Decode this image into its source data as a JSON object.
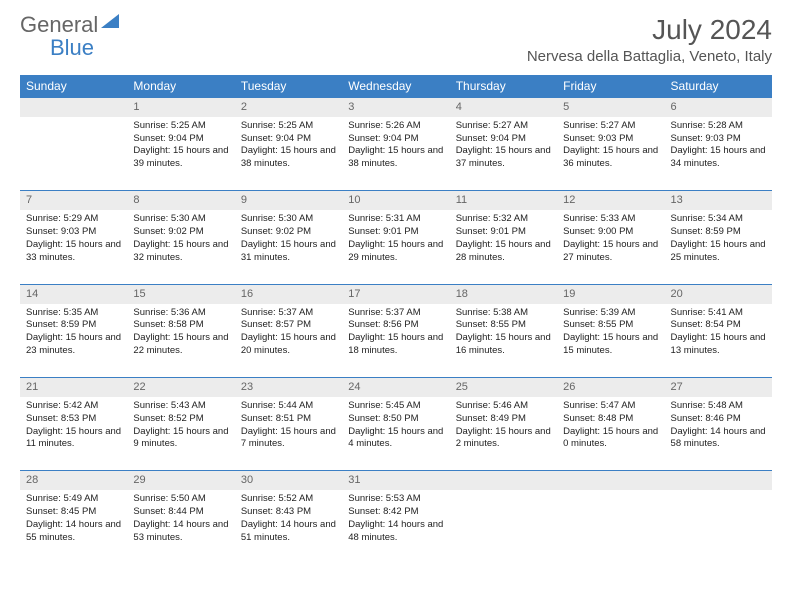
{
  "logo": {
    "text1": "General",
    "text2": "Blue"
  },
  "title": "July 2024",
  "location": "Nervesa della Battaglia, Veneto, Italy",
  "colors": {
    "header_bg": "#3b7fc4",
    "header_text": "#ffffff",
    "daynum_bg": "#ececec",
    "border": "#3b7fc4",
    "text": "#333333",
    "title_text": "#555555"
  },
  "weekdays": [
    "Sunday",
    "Monday",
    "Tuesday",
    "Wednesday",
    "Thursday",
    "Friday",
    "Saturday"
  ],
  "weeks": [
    {
      "nums": [
        "",
        "1",
        "2",
        "3",
        "4",
        "5",
        "6"
      ],
      "cells": [
        "",
        "Sunrise: 5:25 AM\nSunset: 9:04 PM\nDaylight: 15 hours and 39 minutes.",
        "Sunrise: 5:25 AM\nSunset: 9:04 PM\nDaylight: 15 hours and 38 minutes.",
        "Sunrise: 5:26 AM\nSunset: 9:04 PM\nDaylight: 15 hours and 38 minutes.",
        "Sunrise: 5:27 AM\nSunset: 9:04 PM\nDaylight: 15 hours and 37 minutes.",
        "Sunrise: 5:27 AM\nSunset: 9:03 PM\nDaylight: 15 hours and 36 minutes.",
        "Sunrise: 5:28 AM\nSunset: 9:03 PM\nDaylight: 15 hours and 34 minutes."
      ]
    },
    {
      "nums": [
        "7",
        "8",
        "9",
        "10",
        "11",
        "12",
        "13"
      ],
      "cells": [
        "Sunrise: 5:29 AM\nSunset: 9:03 PM\nDaylight: 15 hours and 33 minutes.",
        "Sunrise: 5:30 AM\nSunset: 9:02 PM\nDaylight: 15 hours and 32 minutes.",
        "Sunrise: 5:30 AM\nSunset: 9:02 PM\nDaylight: 15 hours and 31 minutes.",
        "Sunrise: 5:31 AM\nSunset: 9:01 PM\nDaylight: 15 hours and 29 minutes.",
        "Sunrise: 5:32 AM\nSunset: 9:01 PM\nDaylight: 15 hours and 28 minutes.",
        "Sunrise: 5:33 AM\nSunset: 9:00 PM\nDaylight: 15 hours and 27 minutes.",
        "Sunrise: 5:34 AM\nSunset: 8:59 PM\nDaylight: 15 hours and 25 minutes."
      ]
    },
    {
      "nums": [
        "14",
        "15",
        "16",
        "17",
        "18",
        "19",
        "20"
      ],
      "cells": [
        "Sunrise: 5:35 AM\nSunset: 8:59 PM\nDaylight: 15 hours and 23 minutes.",
        "Sunrise: 5:36 AM\nSunset: 8:58 PM\nDaylight: 15 hours and 22 minutes.",
        "Sunrise: 5:37 AM\nSunset: 8:57 PM\nDaylight: 15 hours and 20 minutes.",
        "Sunrise: 5:37 AM\nSunset: 8:56 PM\nDaylight: 15 hours and 18 minutes.",
        "Sunrise: 5:38 AM\nSunset: 8:55 PM\nDaylight: 15 hours and 16 minutes.",
        "Sunrise: 5:39 AM\nSunset: 8:55 PM\nDaylight: 15 hours and 15 minutes.",
        "Sunrise: 5:41 AM\nSunset: 8:54 PM\nDaylight: 15 hours and 13 minutes."
      ]
    },
    {
      "nums": [
        "21",
        "22",
        "23",
        "24",
        "25",
        "26",
        "27"
      ],
      "cells": [
        "Sunrise: 5:42 AM\nSunset: 8:53 PM\nDaylight: 15 hours and 11 minutes.",
        "Sunrise: 5:43 AM\nSunset: 8:52 PM\nDaylight: 15 hours and 9 minutes.",
        "Sunrise: 5:44 AM\nSunset: 8:51 PM\nDaylight: 15 hours and 7 minutes.",
        "Sunrise: 5:45 AM\nSunset: 8:50 PM\nDaylight: 15 hours and 4 minutes.",
        "Sunrise: 5:46 AM\nSunset: 8:49 PM\nDaylight: 15 hours and 2 minutes.",
        "Sunrise: 5:47 AM\nSunset: 8:48 PM\nDaylight: 15 hours and 0 minutes.",
        "Sunrise: 5:48 AM\nSunset: 8:46 PM\nDaylight: 14 hours and 58 minutes."
      ]
    },
    {
      "nums": [
        "28",
        "29",
        "30",
        "31",
        "",
        "",
        ""
      ],
      "cells": [
        "Sunrise: 5:49 AM\nSunset: 8:45 PM\nDaylight: 14 hours and 55 minutes.",
        "Sunrise: 5:50 AM\nSunset: 8:44 PM\nDaylight: 14 hours and 53 minutes.",
        "Sunrise: 5:52 AM\nSunset: 8:43 PM\nDaylight: 14 hours and 51 minutes.",
        "Sunrise: 5:53 AM\nSunset: 8:42 PM\nDaylight: 14 hours and 48 minutes.",
        "",
        "",
        ""
      ]
    }
  ]
}
